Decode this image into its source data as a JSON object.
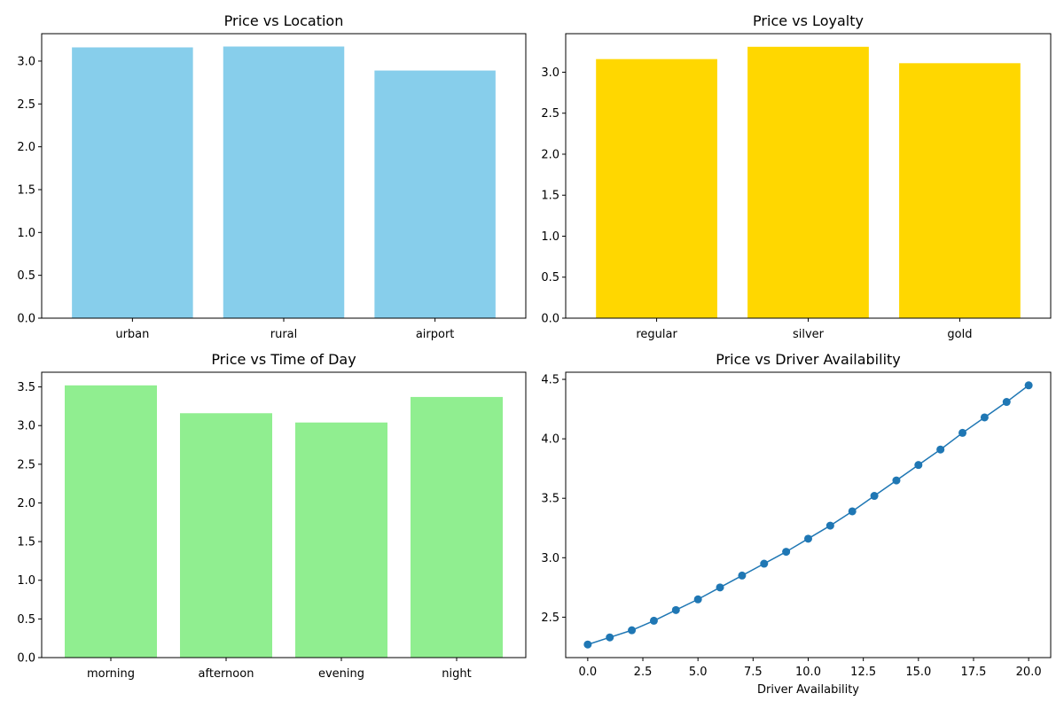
{
  "chart_data": [
    {
      "type": "bar",
      "title": "Price vs Location",
      "categories": [
        "urban",
        "rural",
        "airport"
      ],
      "values": [
        3.16,
        3.17,
        2.89
      ],
      "color": "#87ceeb",
      "ylim": [
        0,
        3.32
      ],
      "yticks": [
        0.0,
        0.5,
        1.0,
        1.5,
        2.0,
        2.5,
        3.0
      ],
      "xlabel": "",
      "ylabel": "",
      "grid": false
    },
    {
      "type": "bar",
      "title": "Price vs Loyalty",
      "categories": [
        "regular",
        "silver",
        "gold"
      ],
      "values": [
        3.16,
        3.31,
        3.11
      ],
      "color": "#ffd700",
      "ylim": [
        0,
        3.47
      ],
      "yticks": [
        0.0,
        0.5,
        1.0,
        1.5,
        2.0,
        2.5,
        3.0
      ],
      "xlabel": "",
      "ylabel": "",
      "grid": false
    },
    {
      "type": "bar",
      "title": "Price vs Time of Day",
      "categories": [
        "morning",
        "afternoon",
        "evening",
        "night"
      ],
      "values": [
        3.52,
        3.16,
        3.04,
        3.37
      ],
      "color": "#90ee90",
      "ylim": [
        0,
        3.69
      ],
      "yticks": [
        0.0,
        0.5,
        1.0,
        1.5,
        2.0,
        2.5,
        3.0,
        3.5
      ],
      "xlabel": "",
      "ylabel": "",
      "grid": false
    },
    {
      "type": "line",
      "title": "Price vs Driver Availability",
      "x": [
        0,
        1,
        2,
        3,
        4,
        5,
        6,
        7,
        8,
        9,
        10,
        11,
        12,
        13,
        14,
        15,
        16,
        17,
        18,
        19,
        20
      ],
      "y": [
        2.27,
        2.33,
        2.39,
        2.47,
        2.56,
        2.65,
        2.75,
        2.85,
        2.95,
        3.05,
        3.16,
        3.27,
        3.39,
        3.52,
        3.65,
        3.78,
        3.91,
        4.05,
        4.18,
        4.31,
        4.45
      ],
      "color": "#1f77b4",
      "xlim": [
        -1.0,
        21.0
      ],
      "ylim": [
        2.16,
        4.56
      ],
      "xticks": [
        0.0,
        2.5,
        5.0,
        7.5,
        10.0,
        12.5,
        15.0,
        17.5,
        20.0
      ],
      "yticks": [
        2.5,
        3.0,
        3.5,
        4.0,
        4.5
      ],
      "xlabel": "Driver Availability",
      "ylabel": "",
      "grid": false
    }
  ]
}
